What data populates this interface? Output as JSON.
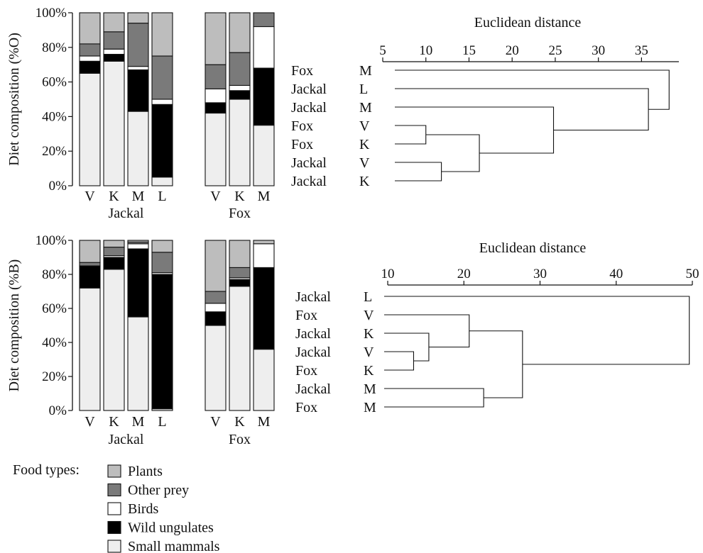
{
  "legend": {
    "title": "Food types:",
    "items": [
      {
        "name": "Plants",
        "color": "#bdbdbd"
      },
      {
        "name": "Other prey",
        "color": "#7a7a7a"
      },
      {
        "name": "Birds",
        "color": "#ffffff"
      },
      {
        "name": "Wild ungulates",
        "color": "#000000"
      },
      {
        "name": "Small mammals",
        "color": "#eeeeee"
      }
    ]
  },
  "chart_data": [
    {
      "type": "bar",
      "stacked": true,
      "ylabel": "Diet composition (%O)",
      "ylim": [
        0,
        100
      ],
      "yticks": [
        "0%",
        "20%",
        "40%",
        "60%",
        "80%",
        "100%"
      ],
      "groups": [
        {
          "label": "Jackal",
          "categories": [
            "V",
            "K",
            "M",
            "L"
          ]
        },
        {
          "label": "Fox",
          "categories": [
            "V",
            "K",
            "M"
          ]
        }
      ],
      "series": [
        {
          "name": "Small mammals",
          "values": [
            65,
            72,
            43,
            5,
            42,
            50,
            35
          ]
        },
        {
          "name": "Wild ungulates",
          "values": [
            7,
            4,
            24,
            42,
            6,
            5,
            33
          ]
        },
        {
          "name": "Birds",
          "values": [
            3,
            3,
            2,
            3,
            8,
            3,
            24
          ]
        },
        {
          "name": "Other prey",
          "values": [
            7,
            10,
            25,
            25,
            14,
            19,
            8
          ]
        },
        {
          "name": "Plants",
          "values": [
            18,
            11,
            6,
            25,
            30,
            23,
            0
          ]
        }
      ]
    },
    {
      "type": "dendrogram",
      "xlabel": "Euclidean distance",
      "xlim": [
        5,
        39
      ],
      "xticks": [
        5,
        10,
        15,
        20,
        25,
        30,
        35
      ],
      "leaves": [
        {
          "species": "Fox",
          "site": "M"
        },
        {
          "species": "Jackal",
          "site": "L"
        },
        {
          "species": "Jackal",
          "site": "M"
        },
        {
          "species": "Fox",
          "site": "V"
        },
        {
          "species": "Fox",
          "site": "K"
        },
        {
          "species": "Jackal",
          "site": "V"
        },
        {
          "species": "Jackal",
          "site": "K"
        }
      ],
      "merges": [
        {
          "a": 3,
          "b": 4,
          "height": 10.0
        },
        {
          "a": 5,
          "b": 6,
          "height": 11.8
        },
        {
          "a": "c0",
          "b": "c1",
          "height": 16.2
        },
        {
          "a": 2,
          "b": "c2",
          "height": 24.8
        },
        {
          "a": 1,
          "b": "c3",
          "height": 35.8
        },
        {
          "a": 0,
          "b": "c4",
          "height": 38.2
        }
      ]
    },
    {
      "type": "bar",
      "stacked": true,
      "ylabel": "Diet composition (%B)",
      "ylim": [
        0,
        100
      ],
      "yticks": [
        "0%",
        "20%",
        "40%",
        "60%",
        "80%",
        "100%"
      ],
      "groups": [
        {
          "label": "Jackal",
          "categories": [
            "V",
            "K",
            "M",
            "L"
          ]
        },
        {
          "label": "Fox",
          "categories": [
            "V",
            "K",
            "M"
          ]
        }
      ],
      "series": [
        {
          "name": "Small mammals",
          "values": [
            72,
            83,
            55,
            1,
            50,
            73,
            36
          ]
        },
        {
          "name": "Wild ungulates",
          "values": [
            13,
            7,
            40,
            79,
            8,
            4,
            48
          ]
        },
        {
          "name": "Birds",
          "values": [
            0,
            1,
            3,
            1,
            5,
            1,
            14
          ]
        },
        {
          "name": "Other prey",
          "values": [
            2,
            5,
            1,
            12,
            7,
            6,
            0
          ]
        },
        {
          "name": "Plants",
          "values": [
            13,
            4,
            1,
            7,
            30,
            16,
            2
          ]
        }
      ]
    },
    {
      "type": "dendrogram",
      "xlabel": "Euclidean distance",
      "xlim": [
        10,
        50
      ],
      "xticks": [
        10,
        20,
        30,
        40,
        50
      ],
      "leaves": [
        {
          "species": "Jackal",
          "site": "L"
        },
        {
          "species": "Fox",
          "site": "V"
        },
        {
          "species": "Jackal",
          "site": "K"
        },
        {
          "species": "Jackal",
          "site": "V"
        },
        {
          "species": "Fox",
          "site": "K"
        },
        {
          "species": "Jackal",
          "site": "M"
        },
        {
          "species": "Fox",
          "site": "M"
        }
      ],
      "merges": [
        {
          "a": 3,
          "b": 4,
          "height": 13.4
        },
        {
          "a": 2,
          "b": "c0",
          "height": 15.4
        },
        {
          "a": 1,
          "b": "c1",
          "height": 20.7
        },
        {
          "a": 5,
          "b": 6,
          "height": 22.6
        },
        {
          "a": "c2",
          "b": "c3",
          "height": 27.7
        },
        {
          "a": 0,
          "b": "c4",
          "height": 49.6
        }
      ]
    }
  ]
}
